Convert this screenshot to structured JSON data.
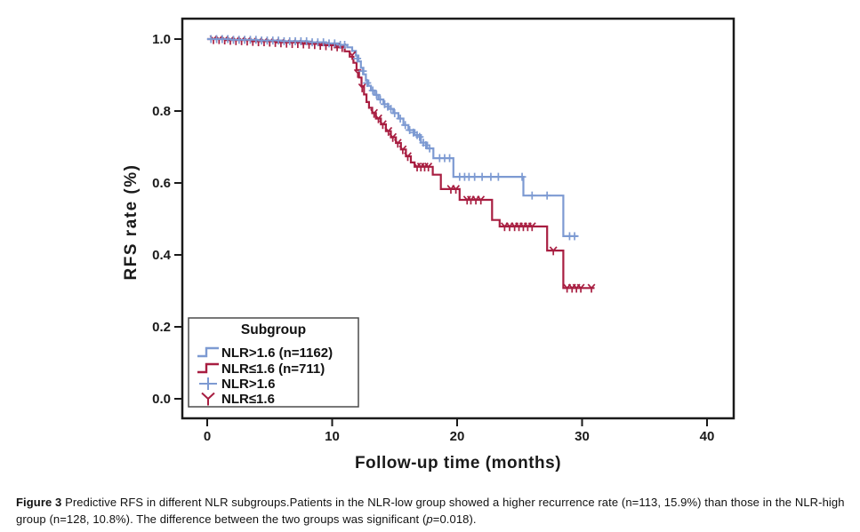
{
  "caption": {
    "label": "Figure 3",
    "text1": " Predictive RFS in different NLR subgroups.Patients in the NLR-low group showed a higher recurrence rate (n=113, 15.9%) than those in the NLR-high group (n=128, 10.8%). The difference between the two groups was significant (",
    "p_symbol": "p",
    "text2": "=0.018)."
  },
  "chart_data": {
    "type": "line",
    "subtype": "kaplan-meier-step",
    "title": "",
    "xlabel": "Follow-up time (months)",
    "ylabel": "RFS rate (%)",
    "xlim": [
      0,
      40
    ],
    "ylim": [
      0.0,
      1.0
    ],
    "x_ticks": [
      "0",
      "10",
      "20",
      "30",
      "40"
    ],
    "x_tick_values": [
      0,
      10,
      20,
      30,
      40
    ],
    "y_ticks": [
      "0.0",
      "0.2",
      "0.4",
      "0.6",
      "0.8",
      "1.0"
    ],
    "y_tick_values": [
      0.0,
      0.2,
      0.4,
      0.6,
      0.8,
      1.0
    ],
    "grid": false,
    "colors": {
      "nlr_high": "#7D9AD2",
      "nlr_low": "#A81E41",
      "axis": "#1a1a1a",
      "legend_border": "#4a4a4a"
    },
    "legend": {
      "position": "lower-left",
      "title": "Subgroup",
      "entries": [
        {
          "label": "NLR>1.6 (n=1162)",
          "symbol": "step",
          "color": "#7D9AD2"
        },
        {
          "label": "NLR≤1.6 (n=711)",
          "symbol": "step",
          "color": "#A81E41"
        },
        {
          "label": "NLR>1.6",
          "symbol": "plus",
          "color": "#7D9AD2"
        },
        {
          "label": "NLR≤1.6",
          "symbol": "tripod",
          "color": "#A81E41"
        }
      ]
    },
    "series": [
      {
        "name": "NLR>1.6 (n=1162)",
        "color": "#7D9AD2",
        "censor_marker": "plus",
        "steps": [
          [
            0,
            1.0
          ],
          [
            2.0,
            1.0
          ],
          [
            2.0,
            0.998
          ],
          [
            4.0,
            0.998
          ],
          [
            4.0,
            0.996
          ],
          [
            6.0,
            0.996
          ],
          [
            6.0,
            0.994
          ],
          [
            8.0,
            0.994
          ],
          [
            8.0,
            0.991
          ],
          [
            9.5,
            0.991
          ],
          [
            9.5,
            0.988
          ],
          [
            10.5,
            0.988
          ],
          [
            10.5,
            0.984
          ],
          [
            11.2,
            0.984
          ],
          [
            11.2,
            0.977
          ],
          [
            11.6,
            0.977
          ],
          [
            11.6,
            0.967
          ],
          [
            11.9,
            0.967
          ],
          [
            11.9,
            0.954
          ],
          [
            12.1,
            0.954
          ],
          [
            12.1,
            0.938
          ],
          [
            12.3,
            0.938
          ],
          [
            12.3,
            0.92
          ],
          [
            12.5,
            0.92
          ],
          [
            12.5,
            0.902
          ],
          [
            12.7,
            0.902
          ],
          [
            12.7,
            0.885
          ],
          [
            12.9,
            0.885
          ],
          [
            12.9,
            0.87
          ],
          [
            13.1,
            0.87
          ],
          [
            13.1,
            0.857
          ],
          [
            13.4,
            0.857
          ],
          [
            13.4,
            0.845
          ],
          [
            13.7,
            0.845
          ],
          [
            13.7,
            0.832
          ],
          [
            14.1,
            0.832
          ],
          [
            14.1,
            0.819
          ],
          [
            14.5,
            0.819
          ],
          [
            14.5,
            0.806
          ],
          [
            14.9,
            0.806
          ],
          [
            14.9,
            0.794
          ],
          [
            15.3,
            0.794
          ],
          [
            15.3,
            0.779
          ],
          [
            15.7,
            0.779
          ],
          [
            15.7,
            0.761
          ],
          [
            16.1,
            0.761
          ],
          [
            16.1,
            0.747
          ],
          [
            16.6,
            0.747
          ],
          [
            16.6,
            0.733
          ],
          [
            17.1,
            0.733
          ],
          [
            17.1,
            0.712
          ],
          [
            17.6,
            0.712
          ],
          [
            17.6,
            0.696
          ],
          [
            18.1,
            0.696
          ],
          [
            18.1,
            0.669
          ],
          [
            19.7,
            0.669
          ],
          [
            19.7,
            0.617
          ],
          [
            25.3,
            0.617
          ],
          [
            25.3,
            0.565
          ],
          [
            28.5,
            0.565
          ],
          [
            28.5,
            0.452
          ],
          [
            29.65,
            0.452
          ]
        ],
        "censors": [
          [
            0.3,
            1.0
          ],
          [
            0.75,
            1.0
          ],
          [
            1.2,
            1.0
          ],
          [
            1.65,
            1.0
          ],
          [
            2.1,
            0.998
          ],
          [
            2.55,
            0.998
          ],
          [
            3.0,
            0.998
          ],
          [
            3.45,
            0.998
          ],
          [
            3.9,
            0.998
          ],
          [
            4.35,
            0.996
          ],
          [
            4.8,
            0.996
          ],
          [
            5.25,
            0.996
          ],
          [
            5.7,
            0.996
          ],
          [
            6.15,
            0.994
          ],
          [
            6.6,
            0.994
          ],
          [
            7.05,
            0.994
          ],
          [
            7.5,
            0.994
          ],
          [
            7.95,
            0.994
          ],
          [
            8.4,
            0.991
          ],
          [
            8.85,
            0.991
          ],
          [
            9.3,
            0.991
          ],
          [
            9.75,
            0.988
          ],
          [
            10.2,
            0.988
          ],
          [
            10.65,
            0.984
          ],
          [
            11.0,
            0.984
          ],
          [
            12.0,
            0.946
          ],
          [
            12.45,
            0.911
          ],
          [
            12.8,
            0.878
          ],
          [
            13.25,
            0.857
          ],
          [
            13.55,
            0.845
          ],
          [
            13.85,
            0.832
          ],
          [
            14.2,
            0.819
          ],
          [
            14.45,
            0.812
          ],
          [
            14.7,
            0.806
          ],
          [
            15.0,
            0.794
          ],
          [
            15.45,
            0.779
          ],
          [
            15.85,
            0.761
          ],
          [
            16.2,
            0.747
          ],
          [
            16.5,
            0.74
          ],
          [
            16.8,
            0.733
          ],
          [
            17.0,
            0.728
          ],
          [
            17.3,
            0.712
          ],
          [
            17.5,
            0.705
          ],
          [
            17.8,
            0.696
          ],
          [
            18.6,
            0.669
          ],
          [
            19.0,
            0.669
          ],
          [
            19.4,
            0.669
          ],
          [
            20.2,
            0.617
          ],
          [
            20.6,
            0.617
          ],
          [
            20.95,
            0.617
          ],
          [
            21.4,
            0.617
          ],
          [
            22.0,
            0.617
          ],
          [
            22.7,
            0.617
          ],
          [
            23.3,
            0.617
          ],
          [
            25.2,
            0.617
          ],
          [
            26.0,
            0.565
          ],
          [
            27.2,
            0.565
          ],
          [
            29.0,
            0.452
          ],
          [
            29.4,
            0.452
          ]
        ]
      },
      {
        "name": "NLR≤1.6 (n=711)",
        "color": "#A81E41",
        "censor_marker": "tripod",
        "steps": [
          [
            0,
            1.0
          ],
          [
            1.5,
            1.0
          ],
          [
            1.5,
            0.997
          ],
          [
            3.5,
            0.997
          ],
          [
            3.5,
            0.994
          ],
          [
            5.5,
            0.994
          ],
          [
            5.5,
            0.991
          ],
          [
            7.5,
            0.991
          ],
          [
            7.5,
            0.987
          ],
          [
            9.0,
            0.987
          ],
          [
            9.0,
            0.983
          ],
          [
            10.2,
            0.983
          ],
          [
            10.2,
            0.977
          ],
          [
            11.0,
            0.977
          ],
          [
            11.0,
            0.966
          ],
          [
            11.4,
            0.966
          ],
          [
            11.4,
            0.951
          ],
          [
            11.7,
            0.951
          ],
          [
            11.7,
            0.934
          ],
          [
            11.95,
            0.934
          ],
          [
            11.95,
            0.914
          ],
          [
            12.15,
            0.914
          ],
          [
            12.15,
            0.893
          ],
          [
            12.35,
            0.893
          ],
          [
            12.35,
            0.869
          ],
          [
            12.55,
            0.869
          ],
          [
            12.55,
            0.846
          ],
          [
            12.75,
            0.846
          ],
          [
            12.75,
            0.825
          ],
          [
            12.95,
            0.825
          ],
          [
            12.95,
            0.809
          ],
          [
            13.2,
            0.809
          ],
          [
            13.2,
            0.794
          ],
          [
            13.5,
            0.794
          ],
          [
            13.5,
            0.779
          ],
          [
            13.9,
            0.779
          ],
          [
            13.9,
            0.763
          ],
          [
            14.3,
            0.763
          ],
          [
            14.3,
            0.744
          ],
          [
            14.7,
            0.744
          ],
          [
            14.7,
            0.727
          ],
          [
            15.1,
            0.727
          ],
          [
            15.1,
            0.711
          ],
          [
            15.5,
            0.711
          ],
          [
            15.5,
            0.693
          ],
          [
            15.9,
            0.693
          ],
          [
            15.9,
            0.674
          ],
          [
            16.3,
            0.674
          ],
          [
            16.3,
            0.657
          ],
          [
            16.6,
            0.657
          ],
          [
            16.6,
            0.645
          ],
          [
            18.05,
            0.645
          ],
          [
            18.05,
            0.623
          ],
          [
            18.7,
            0.623
          ],
          [
            18.7,
            0.583
          ],
          [
            20.2,
            0.583
          ],
          [
            20.2,
            0.553
          ],
          [
            22.8,
            0.553
          ],
          [
            22.8,
            0.497
          ],
          [
            23.4,
            0.497
          ],
          [
            23.4,
            0.479
          ],
          [
            27.2,
            0.479
          ],
          [
            27.2,
            0.412
          ],
          [
            28.5,
            0.412
          ],
          [
            28.5,
            0.308
          ],
          [
            31.0,
            0.308
          ]
        ],
        "censors": [
          [
            0.5,
            0.999
          ],
          [
            0.95,
            0.999
          ],
          [
            1.4,
            0.998
          ],
          [
            1.85,
            0.997
          ],
          [
            2.3,
            0.996
          ],
          [
            2.75,
            0.996
          ],
          [
            3.2,
            0.995
          ],
          [
            3.65,
            0.994
          ],
          [
            4.1,
            0.993
          ],
          [
            4.55,
            0.993
          ],
          [
            5.0,
            0.992
          ],
          [
            5.45,
            0.991
          ],
          [
            5.9,
            0.99
          ],
          [
            6.35,
            0.989
          ],
          [
            6.8,
            0.988
          ],
          [
            7.25,
            0.988
          ],
          [
            7.7,
            0.987
          ],
          [
            8.15,
            0.986
          ],
          [
            8.6,
            0.985
          ],
          [
            9.05,
            0.983
          ],
          [
            9.5,
            0.982
          ],
          [
            9.95,
            0.981
          ],
          [
            10.4,
            0.979
          ],
          [
            10.8,
            0.977
          ],
          [
            11.6,
            0.955
          ],
          [
            12.05,
            0.905
          ],
          [
            12.4,
            0.865
          ],
          [
            13.35,
            0.794
          ],
          [
            13.7,
            0.779
          ],
          [
            14.05,
            0.763
          ],
          [
            14.5,
            0.744
          ],
          [
            14.85,
            0.727
          ],
          [
            15.25,
            0.711
          ],
          [
            15.65,
            0.693
          ],
          [
            16.05,
            0.674
          ],
          [
            16.8,
            0.645
          ],
          [
            17.1,
            0.645
          ],
          [
            17.4,
            0.645
          ],
          [
            17.7,
            0.645
          ],
          [
            19.5,
            0.583
          ],
          [
            19.9,
            0.583
          ],
          [
            20.8,
            0.553
          ],
          [
            21.1,
            0.553
          ],
          [
            21.5,
            0.553
          ],
          [
            21.9,
            0.553
          ],
          [
            23.8,
            0.479
          ],
          [
            24.2,
            0.479
          ],
          [
            24.6,
            0.479
          ],
          [
            24.95,
            0.479
          ],
          [
            25.3,
            0.479
          ],
          [
            25.65,
            0.479
          ],
          [
            26.0,
            0.479
          ],
          [
            27.7,
            0.412
          ],
          [
            28.8,
            0.308
          ],
          [
            29.2,
            0.308
          ],
          [
            29.55,
            0.308
          ],
          [
            29.9,
            0.308
          ],
          [
            30.75,
            0.308
          ]
        ]
      }
    ]
  }
}
